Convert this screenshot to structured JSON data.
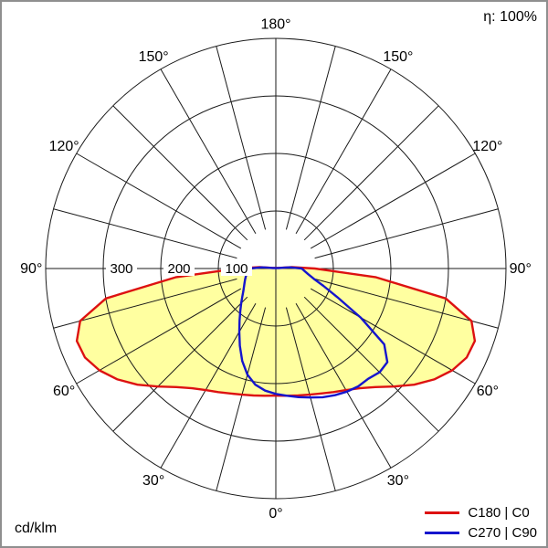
{
  "chart_data": {
    "type": "polar_intensity",
    "units": "cd/klm",
    "efficiency": "η: 100%",
    "radial_ticks": [
      100,
      200,
      300
    ],
    "radial_max": 400,
    "spoke_step_deg": 15,
    "spoke_inner": 70,
    "angle_convention": "gamma in degrees from nadir (0° bottom, 180° top); negative = left half (C180 / C270), positive = right half (C0 / C90); values in cd/klm",
    "angle_labels": [
      {
        "a": 180,
        "t": "180°"
      },
      {
        "a": 150,
        "t": "150°"
      },
      {
        "a": -150,
        "t": "150°"
      },
      {
        "a": 120,
        "t": "120°"
      },
      {
        "a": -120,
        "t": "120°"
      },
      {
        "a": 90,
        "t": "90°"
      },
      {
        "a": -90,
        "t": "90°"
      },
      {
        "a": 60,
        "t": "60°"
      },
      {
        "a": -60,
        "t": "60°"
      },
      {
        "a": 30,
        "t": "30°"
      },
      {
        "a": -30,
        "t": "30°"
      },
      {
        "a": 0,
        "t": "0°"
      }
    ],
    "series": [
      {
        "name": "C180 | C0",
        "color": "#dd1111",
        "fill": "#ffffa0",
        "points": [
          [
            -100,
            6
          ],
          [
            -95,
            28
          ],
          [
            -90,
            68
          ],
          [
            -85,
            175
          ],
          [
            -80,
            300
          ],
          [
            -75,
            352
          ],
          [
            -70,
            368
          ],
          [
            -65,
            366
          ],
          [
            -60,
            354
          ],
          [
            -55,
            336
          ],
          [
            -50,
            314
          ],
          [
            -45,
            290
          ],
          [
            -40,
            269
          ],
          [
            -35,
            254
          ],
          [
            -30,
            244
          ],
          [
            -25,
            237
          ],
          [
            -20,
            231
          ],
          [
            -15,
            227
          ],
          [
            -10,
            224
          ],
          [
            -5,
            222
          ],
          [
            0,
            221
          ],
          [
            5,
            222
          ],
          [
            10,
            224
          ],
          [
            15,
            227
          ],
          [
            20,
            231
          ],
          [
            25,
            237
          ],
          [
            30,
            244
          ],
          [
            35,
            254
          ],
          [
            40,
            269
          ],
          [
            45,
            290
          ],
          [
            50,
            314
          ],
          [
            55,
            336
          ],
          [
            60,
            354
          ],
          [
            65,
            366
          ],
          [
            70,
            368
          ],
          [
            75,
            352
          ],
          [
            80,
            300
          ],
          [
            85,
            175
          ],
          [
            90,
            68
          ],
          [
            95,
            28
          ],
          [
            100,
            6
          ]
        ]
      },
      {
        "name": "C270 | C90",
        "color": "#1515cd",
        "fill": null,
        "points": [
          [
            -100,
            5
          ],
          [
            -95,
            24
          ],
          [
            -90,
            45
          ],
          [
            -85,
            48
          ],
          [
            -80,
            51
          ],
          [
            -75,
            54
          ],
          [
            -70,
            57
          ],
          [
            -65,
            60
          ],
          [
            -60,
            64
          ],
          [
            -55,
            69
          ],
          [
            -50,
            76
          ],
          [
            -45,
            85
          ],
          [
            -40,
            96
          ],
          [
            -35,
            110
          ],
          [
            -30,
            127
          ],
          [
            -25,
            148
          ],
          [
            -20,
            171
          ],
          [
            -15,
            191
          ],
          [
            -10,
            205
          ],
          [
            -5,
            213
          ],
          [
            0,
            218
          ],
          [
            5,
            222
          ],
          [
            10,
            227
          ],
          [
            15,
            232
          ],
          [
            20,
            238
          ],
          [
            25,
            243
          ],
          [
            30,
            247
          ],
          [
            35,
            250
          ],
          [
            40,
            250
          ],
          [
            45,
            255
          ],
          [
            50,
            253
          ],
          [
            55,
            230
          ],
          [
            60,
            170
          ],
          [
            65,
            118
          ],
          [
            70,
            88
          ],
          [
            75,
            68
          ],
          [
            80,
            57
          ],
          [
            85,
            50
          ],
          [
            90,
            45
          ],
          [
            95,
            24
          ],
          [
            100,
            5
          ]
        ]
      }
    ]
  }
}
